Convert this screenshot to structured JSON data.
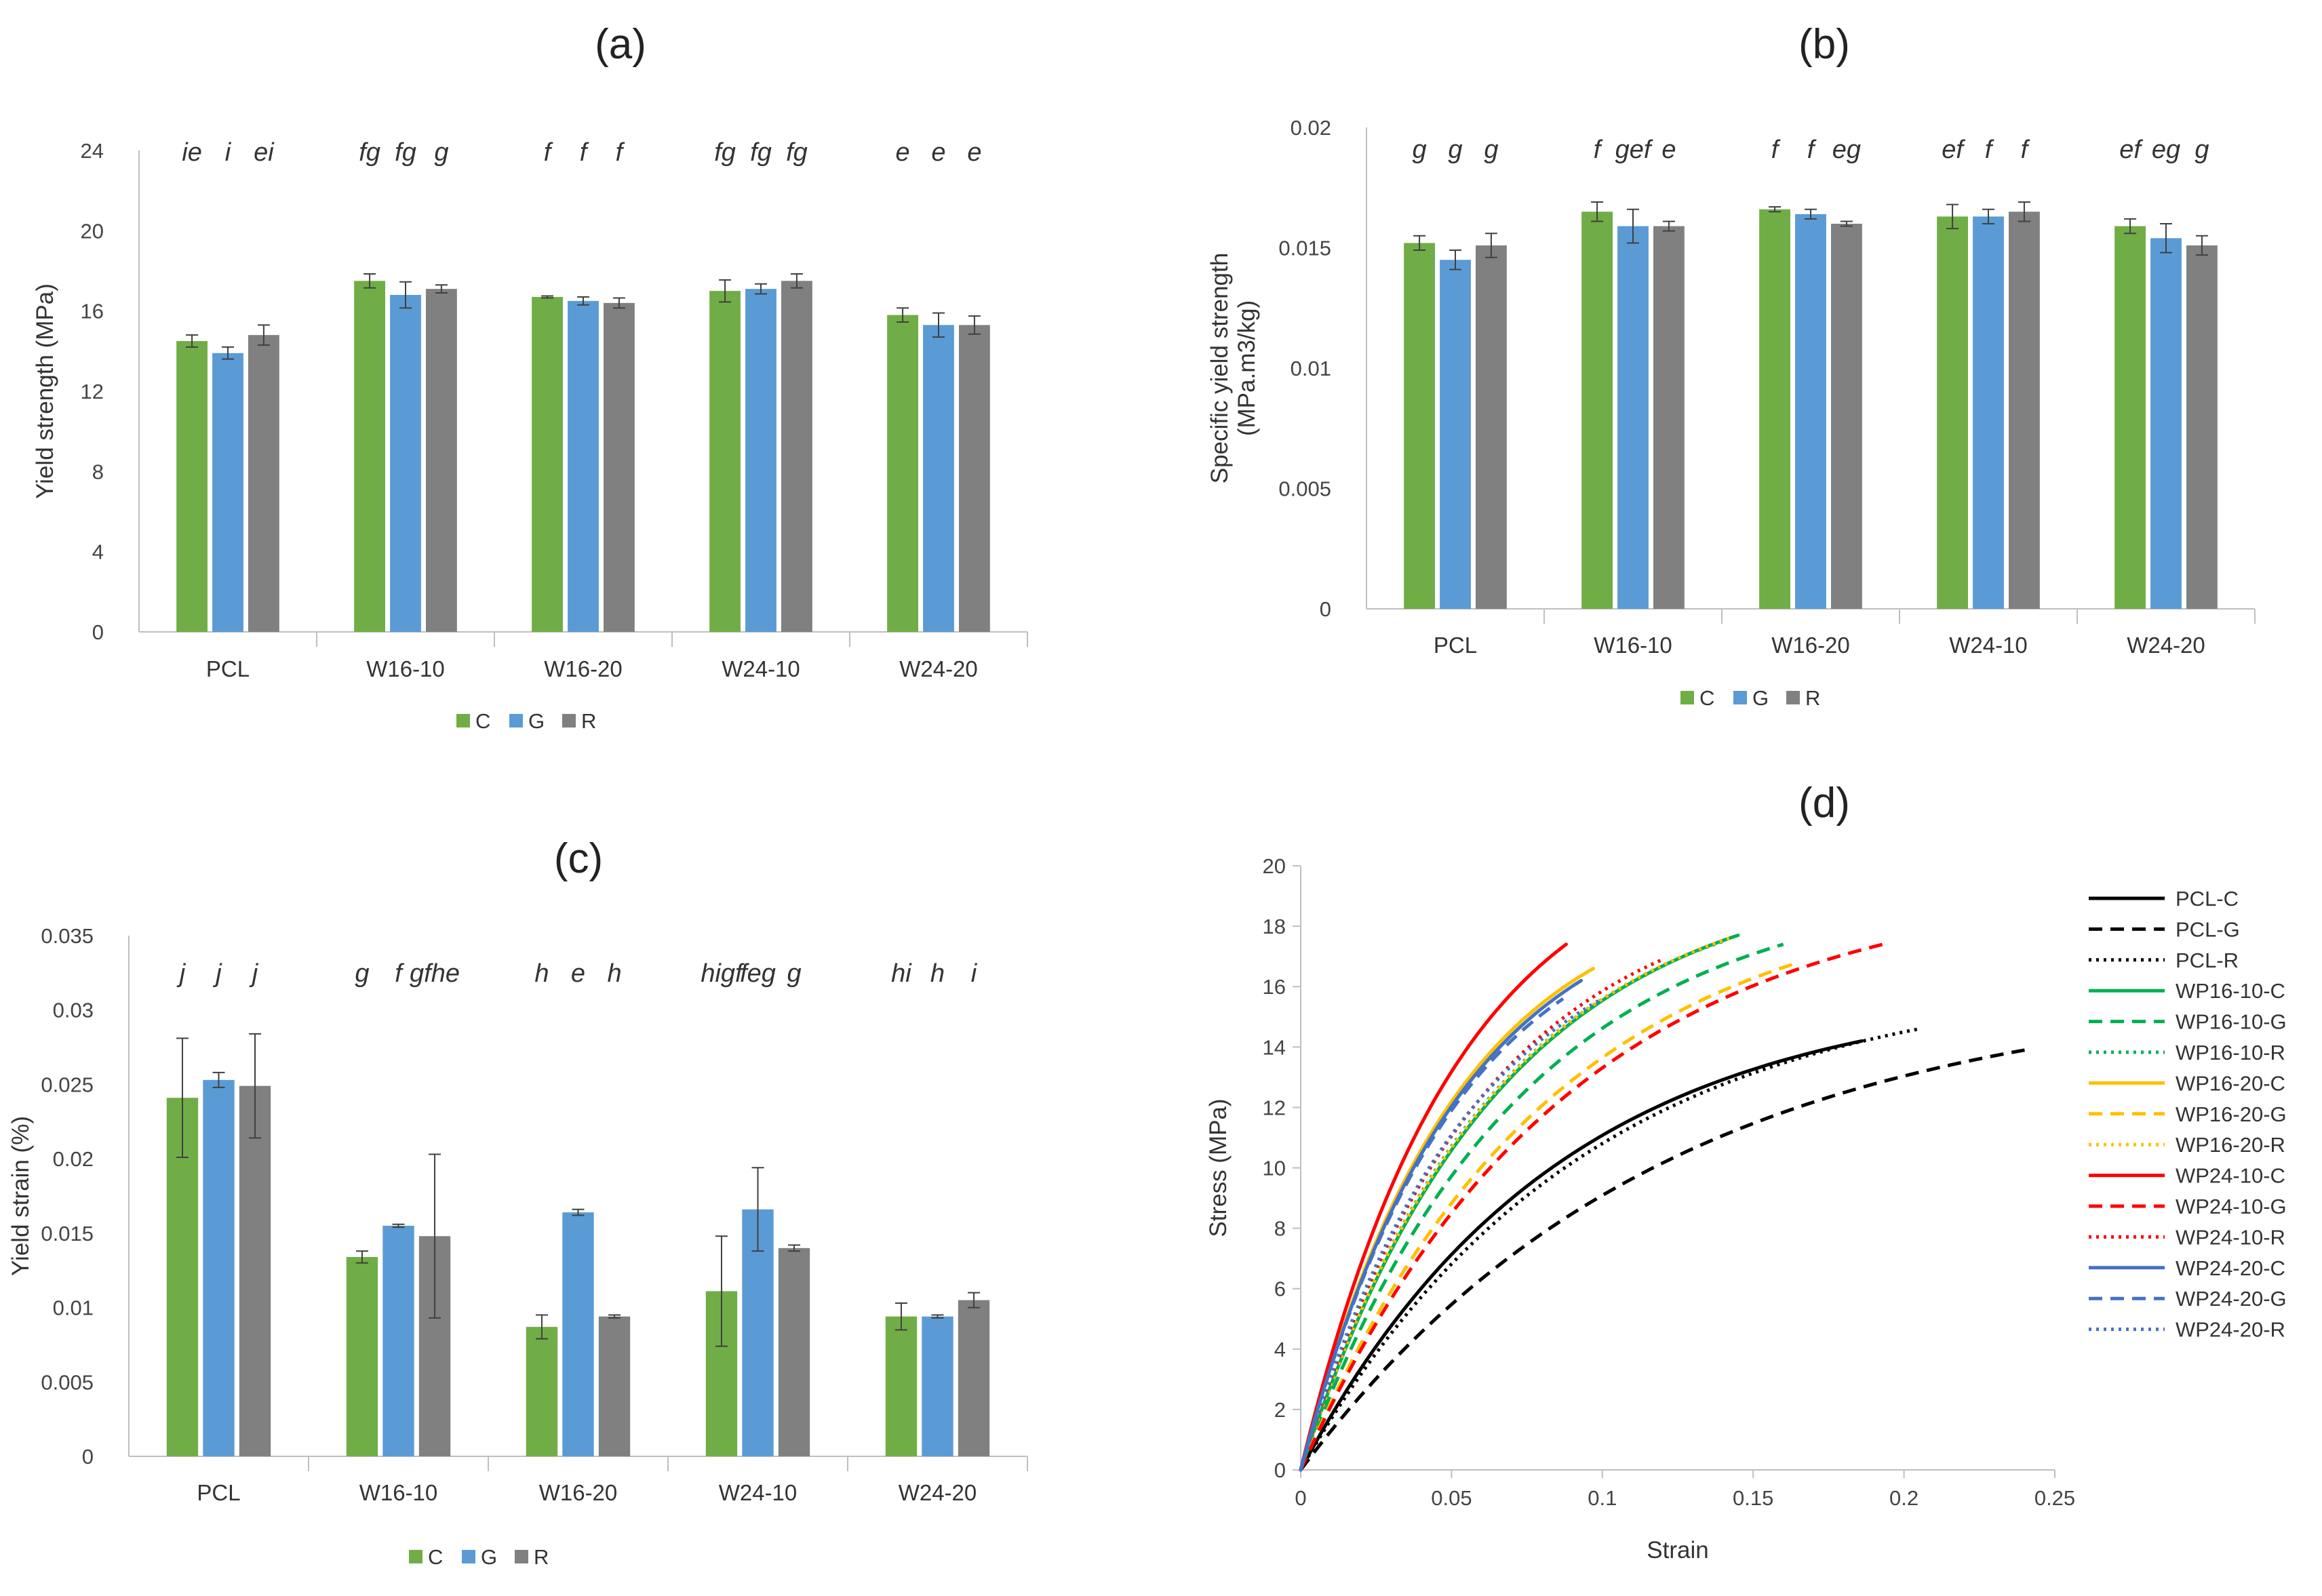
{
  "colors": {
    "C": "#70ad47",
    "G": "#5b9bd5",
    "R": "#808080"
  },
  "chart_data": [
    {
      "id": "a",
      "panel": "(a)",
      "type": "bar",
      "title": "(a)",
      "ylabel": "Yield strength (MPa)",
      "xlabel": "",
      "ylim": [
        0,
        24
      ],
      "yticks": [
        0,
        4,
        8,
        12,
        16,
        20,
        24
      ],
      "ytick_labels": [
        "0",
        "4",
        "8",
        "12",
        "16",
        "20",
        "24"
      ],
      "categories": [
        "PCL",
        "W16-10",
        "W16-20",
        "W24-10",
        "W24-20"
      ],
      "series": [
        {
          "name": "C",
          "values": [
            14.5,
            17.5,
            16.7,
            17.0,
            15.8
          ],
          "errors": [
            0.3,
            0.35,
            0.05,
            0.55,
            0.35
          ]
        },
        {
          "name": "G",
          "values": [
            13.9,
            16.8,
            16.5,
            17.1,
            15.3
          ],
          "errors": [
            0.3,
            0.65,
            0.2,
            0.25,
            0.6
          ]
        },
        {
          "name": "R",
          "values": [
            14.8,
            17.1,
            16.4,
            17.5,
            15.3
          ],
          "errors": [
            0.5,
            0.2,
            0.25,
            0.35,
            0.45
          ]
        }
      ],
      "letters": [
        [
          "ie",
          "i",
          "ei"
        ],
        [
          "fg",
          "fg",
          "g"
        ],
        [
          "f",
          "f",
          "f"
        ],
        [
          "fg",
          "fg",
          "fg"
        ],
        [
          "e",
          "e",
          "e"
        ]
      ],
      "legend": [
        "C",
        "G",
        "R"
      ],
      "legend_position": "bottom"
    },
    {
      "id": "b",
      "panel": "(b)",
      "type": "bar",
      "title": "(b)",
      "ylabel": "Specific yield strength",
      "ylabel2": "(MPa.m3/kg)",
      "xlabel": "",
      "ylim": [
        0,
        0.02
      ],
      "yticks": [
        0,
        0.005,
        0.01,
        0.015,
        0.02
      ],
      "ytick_labels": [
        "0",
        "0.005",
        "0.01",
        "0.015",
        "0.02"
      ],
      "categories": [
        "PCL",
        "W16-10",
        "W16-20",
        "W24-10",
        "W24-20"
      ],
      "series": [
        {
          "name": "C",
          "values": [
            0.0152,
            0.0165,
            0.0166,
            0.0163,
            0.0159
          ],
          "errors": [
            0.0003,
            0.0004,
            0.0001,
            0.0005,
            0.0003
          ]
        },
        {
          "name": "G",
          "values": [
            0.0145,
            0.0159,
            0.0164,
            0.0163,
            0.0154
          ],
          "errors": [
            0.0004,
            0.0007,
            0.0002,
            0.0003,
            0.0006
          ]
        },
        {
          "name": "R",
          "values": [
            0.0151,
            0.0159,
            0.016,
            0.0165,
            0.0151
          ],
          "errors": [
            0.0005,
            0.0002,
            0.0001,
            0.0004,
            0.0004
          ]
        }
      ],
      "letters": [
        [
          "g",
          "g",
          "g"
        ],
        [
          "f",
          "gef",
          "e"
        ],
        [
          "f",
          "f",
          "eg"
        ],
        [
          "ef",
          "f",
          "f"
        ],
        [
          "ef",
          "eg",
          "g"
        ]
      ],
      "legend": [
        "C",
        "G",
        "R"
      ],
      "legend_position": "bottom"
    },
    {
      "id": "c",
      "panel": "(c)",
      "type": "bar",
      "title": "(c)",
      "ylabel": "Yield strain (%)",
      "xlabel": "",
      "ylim": [
        0,
        0.035
      ],
      "yticks": [
        0,
        0.005,
        0.01,
        0.015,
        0.02,
        0.025,
        0.03,
        0.035
      ],
      "ytick_labels": [
        "0",
        "0.005",
        "0.01",
        "0.015",
        "0.02",
        "0.025",
        "0.03",
        "0.035"
      ],
      "categories": [
        "PCL",
        "W16-10",
        "W16-20",
        "W24-10",
        "W24-20"
      ],
      "series": [
        {
          "name": "C",
          "values": [
            0.0241,
            0.0134,
            0.0087,
            0.0111,
            0.0094
          ],
          "errors": [
            0.004,
            0.0004,
            0.0008,
            0.0037,
            0.0009
          ]
        },
        {
          "name": "G",
          "values": [
            0.0253,
            0.0155,
            0.0164,
            0.0166,
            0.0094
          ],
          "errors": [
            0.0005,
            0.0001,
            0.0002,
            0.0028,
            0.0001
          ]
        },
        {
          "name": "R",
          "values": [
            0.0249,
            0.0148,
            0.0094,
            0.014,
            0.0105
          ],
          "errors": [
            0.0035,
            0.0055,
            0.0001,
            0.0002,
            0.0005
          ]
        }
      ],
      "letters": [
        [
          "j",
          "j",
          "j"
        ],
        [
          "g",
          "f",
          "gfhe"
        ],
        [
          "h",
          "e",
          "h"
        ],
        [
          "higf",
          "feg",
          "g"
        ],
        [
          "hi",
          "h",
          "i"
        ]
      ],
      "legend": [
        "C",
        "G",
        "R"
      ],
      "legend_position": "bottom"
    },
    {
      "id": "d",
      "panel": "(d)",
      "type": "line",
      "title": "(d)",
      "xlabel": "Strain",
      "ylabel": "Stress (MPa)",
      "xlim": [
        0,
        0.25
      ],
      "ylim": [
        0,
        20
      ],
      "xticks": [
        0,
        0.05,
        0.1,
        0.15,
        0.2,
        0.25
      ],
      "xtick_labels": [
        "0",
        "0.05",
        "0.1",
        "0.15",
        "0.2",
        "0.25"
      ],
      "yticks": [
        0,
        2,
        4,
        6,
        8,
        10,
        12,
        14,
        16,
        18,
        20
      ],
      "ytick_labels": [
        "0",
        "2",
        "4",
        "6",
        "8",
        "10",
        "12",
        "14",
        "16",
        "18",
        "20"
      ],
      "legend_position": "right",
      "series": [
        {
          "name": "PCL-C",
          "color": "#000000",
          "dash": "solid",
          "x_end": 0.186,
          "y_max": 14.2,
          "k": 2.2
        },
        {
          "name": "PCL-G",
          "color": "#000000",
          "dash": "dashed",
          "x_end": 0.24,
          "y_max": 13.9,
          "k": 2.0
        },
        {
          "name": "PCL-R",
          "color": "#000000",
          "dash": "dotted",
          "x_end": 0.205,
          "y_max": 14.6,
          "k": 2.2
        },
        {
          "name": "WP16-10-C",
          "color": "#00b050",
          "dash": "solid",
          "x_end": 0.145,
          "y_max": 17.7,
          "k": 2.2
        },
        {
          "name": "WP16-10-G",
          "color": "#00b050",
          "dash": "dashed",
          "x_end": 0.16,
          "y_max": 17.4,
          "k": 2.2
        },
        {
          "name": "WP16-10-R",
          "color": "#00b050",
          "dash": "dotted",
          "x_end": 0.14,
          "y_max": 17.5,
          "k": 2.2
        },
        {
          "name": "WP16-20-C",
          "color": "#ffc000",
          "dash": "solid",
          "x_end": 0.097,
          "y_max": 16.6,
          "k": 1.9
        },
        {
          "name": "WP16-20-G",
          "color": "#ffc000",
          "dash": "dashed",
          "x_end": 0.165,
          "y_max": 16.8,
          "k": 2.0
        },
        {
          "name": "WP16-20-R",
          "color": "#ffc000",
          "dash": "dotted",
          "x_end": 0.142,
          "y_max": 17.6,
          "k": 2.2
        },
        {
          "name": "WP24-10-C",
          "color": "#ff0000",
          "dash": "solid",
          "x_end": 0.088,
          "y_max": 17.4,
          "k": 1.7
        },
        {
          "name": "WP24-10-G",
          "color": "#ff0000",
          "dash": "dashed",
          "x_end": 0.193,
          "y_max": 17.4,
          "k": 2.2
        },
        {
          "name": "WP24-10-R",
          "color": "#ff0000",
          "dash": "dotted",
          "x_end": 0.12,
          "y_max": 16.9,
          "k": 2.0
        },
        {
          "name": "WP24-20-C",
          "color": "#4472c4",
          "dash": "solid",
          "x_end": 0.093,
          "y_max": 16.2,
          "k": 1.8
        },
        {
          "name": "WP24-20-G",
          "color": "#4472c4",
          "dash": "dashed",
          "x_end": 0.087,
          "y_max": 15.6,
          "k": 1.7
        },
        {
          "name": "WP24-20-R",
          "color": "#4472c4",
          "dash": "dotted",
          "x_end": 0.1,
          "y_max": 15.6,
          "k": 1.8
        }
      ]
    }
  ]
}
